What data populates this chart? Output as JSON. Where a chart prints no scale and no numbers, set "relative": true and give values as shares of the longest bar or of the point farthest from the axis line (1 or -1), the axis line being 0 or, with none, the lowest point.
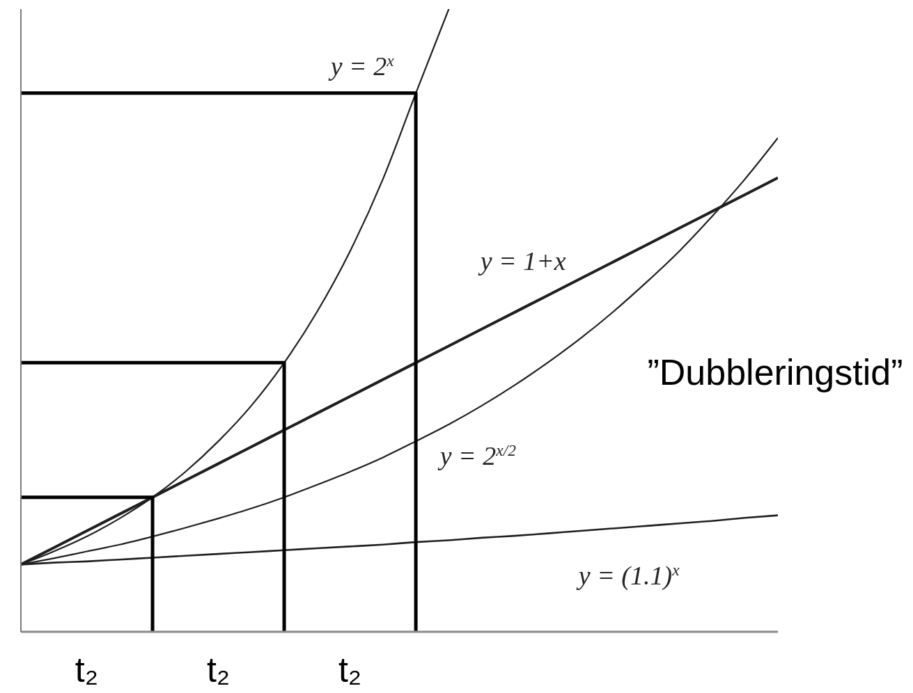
{
  "chart_data": {
    "type": "line",
    "relative": true,
    "categories": [
      null,
      null,
      "t₂",
      null,
      null,
      null,
      "t₂",
      null,
      null,
      null,
      "t₂",
      null,
      null,
      null,
      null,
      null,
      null,
      null,
      null,
      null,
      null,
      null,
      null,
      null
    ],
    "annotations": [
      "”Dubbleringstid”"
    ],
    "series": [
      {
        "name": "y = 2$^{x}$",
        "color": "#1f1f1f",
        "values": [
          0.108,
          0.129,
          0.153,
          0.182,
          0.216,
          0.257,
          0.306,
          0.363,
          0.432,
          0.514,
          0.611,
          0.727,
          0.865,
          1,
          null,
          null,
          null,
          null,
          null,
          null,
          null,
          null,
          null,
          null
        ]
      },
      {
        "name": "y = 1+x",
        "color": "#1f1f1f",
        "values": [
          0.108,
          0.135,
          0.162,
          0.189,
          0.216,
          0.243,
          0.27,
          0.297,
          0.324,
          0.351,
          0.378,
          0.405,
          0.432,
          0.459,
          0.486,
          0.513,
          0.54,
          0.567,
          0.594,
          0.621,
          0.648,
          0.675,
          0.702,
          0.729
        ]
      },
      {
        "name": "y = 2$^{x/2}$",
        "color": "#1f1f1f",
        "values": [
          0.108,
          0.118,
          0.129,
          0.14,
          0.153,
          0.167,
          0.182,
          0.198,
          0.216,
          0.236,
          0.257,
          0.28,
          0.306,
          0.333,
          0.363,
          0.396,
          0.432,
          0.471,
          0.514,
          0.561,
          0.611,
          0.667,
          0.727,
          0.793
        ]
      },
      {
        "name": "y = (1.1)$^{x}$",
        "color": "#1f1f1f",
        "values": [
          0.108,
          0.111,
          0.113,
          0.116,
          0.119,
          0.122,
          0.125,
          0.128,
          0.131,
          0.134,
          0.137,
          0.14,
          0.144,
          0.147,
          0.151,
          0.154,
          0.158,
          0.162,
          0.166,
          0.17,
          0.174,
          0.178,
          0.183,
          0.187
        ]
      },
      {
        "type": "step",
        "color": "#000000",
        "values": [
          0.216,
          0.216,
          0.216,
          0.216,
          0,
          null,
          null,
          null,
          null,
          null,
          null,
          null,
          null,
          null,
          null,
          null,
          null,
          null,
          null,
          null,
          null,
          null,
          null,
          null
        ]
      },
      {
        "type": "step",
        "color": "#000000",
        "values": [
          0.432,
          0.432,
          0.432,
          0.432,
          0.432,
          0.432,
          0.432,
          0.432,
          0,
          null,
          null,
          null,
          null,
          null,
          null,
          null,
          null,
          null,
          null,
          null,
          null,
          null,
          null,
          null
        ]
      },
      {
        "type": "step",
        "color": "#000000",
        "values": [
          0.865,
          0.865,
          0.865,
          0.865,
          0.865,
          0.865,
          0.865,
          0.865,
          0.865,
          0.865,
          0.865,
          0.865,
          0,
          null,
          null,
          null,
          null,
          null,
          null,
          null,
          null,
          null,
          null,
          null
        ]
      }
    ]
  }
}
